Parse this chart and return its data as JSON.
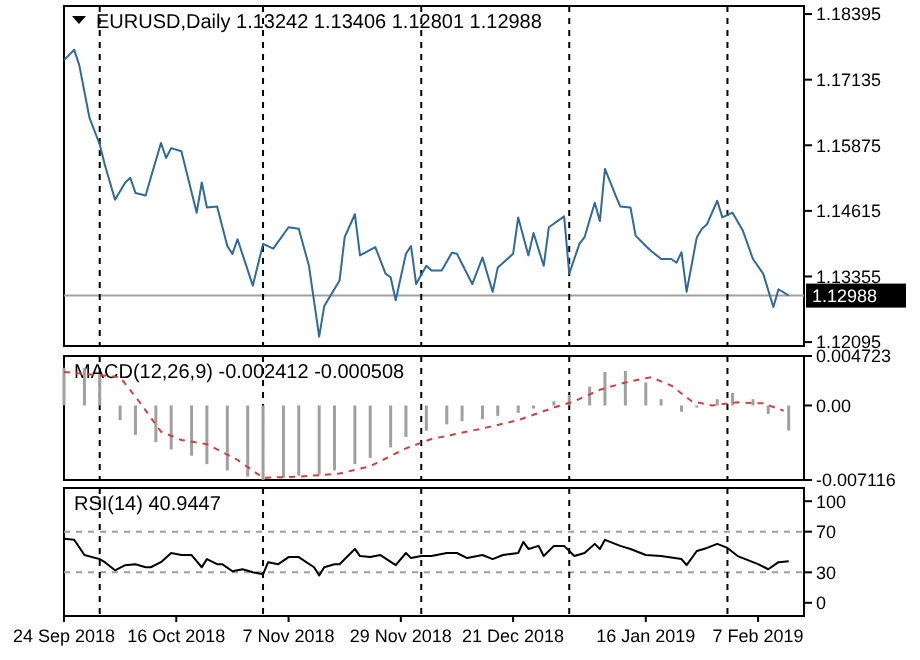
{
  "chart_data": [
    {
      "type": "line",
      "title": "EURUSD,Daily 1.13242 1.13406 1.12801 1.12988",
      "xlim": [
        "2018-09-24",
        "2019-02-16"
      ],
      "ylim": [
        1.1202,
        1.1855
      ],
      "yticks": [
        1.18395,
        1.17135,
        1.15875,
        1.14615,
        1.13355,
        1.12095
      ],
      "tick_labels": "y",
      "grid": false,
      "ref_lines": [
        {
          "axis": "y",
          "value": 1.12988,
          "label": "1.12988",
          "color": "#a0a0a0",
          "line_style": "solid"
        },
        {
          "axis": "x",
          "value": "2018-10-01",
          "color": "#000000",
          "line_style": "dashed"
        },
        {
          "axis": "x",
          "value": "2018-11-02",
          "color": "#000000",
          "line_style": "dashed"
        },
        {
          "axis": "x",
          "value": "2018-12-03",
          "color": "#000000",
          "line_style": "dashed"
        },
        {
          "axis": "x",
          "value": "2019-01-01",
          "color": "#000000",
          "line_style": "dashed"
        },
        {
          "axis": "x",
          "value": "2019-02-01",
          "color": "#000000",
          "line_style": "dashed"
        }
      ],
      "series": [
        {
          "color": "#2e6a9a",
          "x": [
            "2018-09-24",
            "2018-09-26",
            "2018-09-27",
            "2018-09-29",
            "2018-10-01",
            "2018-10-02",
            "2018-10-04",
            "2018-10-06",
            "2018-10-07",
            "2018-10-08",
            "2018-10-10",
            "2018-10-11",
            "2018-10-13",
            "2018-10-14",
            "2018-10-15",
            "2018-10-17",
            "2018-10-20",
            "2018-10-21",
            "2018-10-22",
            "2018-10-24",
            "2018-10-26",
            "2018-10-27",
            "2018-10-28",
            "2018-10-31",
            "2018-11-02",
            "2018-11-04",
            "2018-11-07",
            "2018-11-09",
            "2018-11-11",
            "2018-11-13",
            "2018-11-14",
            "2018-11-17",
            "2018-11-18",
            "2018-11-20",
            "2018-11-21",
            "2018-11-24",
            "2018-11-26",
            "2018-11-27",
            "2018-11-28",
            "2018-11-30",
            "2018-12-01",
            "2018-12-02",
            "2018-12-04",
            "2018-12-05",
            "2018-12-07",
            "2018-12-09",
            "2018-12-10",
            "2018-12-13",
            "2018-12-15",
            "2018-12-17",
            "2018-12-18",
            "2018-12-21",
            "2018-12-22",
            "2018-12-24",
            "2018-12-25",
            "2018-12-27",
            "2018-12-28",
            "2018-12-31",
            "2019-01-01",
            "2019-01-03",
            "2019-01-04",
            "2019-01-06",
            "2019-01-07",
            "2019-01-08",
            "2019-01-10",
            "2019-01-11",
            "2019-01-13",
            "2019-01-14",
            "2019-01-16",
            "2019-01-17",
            "2019-01-19",
            "2019-01-21",
            "2019-01-22",
            "2019-01-23",
            "2019-01-24",
            "2019-01-26",
            "2019-01-27",
            "2019-01-28",
            "2019-01-30",
            "2019-01-31",
            "2019-02-02",
            "2019-02-04",
            "2019-02-06",
            "2019-02-08",
            "2019-02-10",
            "2019-02-11",
            "2019-02-13"
          ],
          "values": [
            1.1751,
            1.1771,
            1.1741,
            1.164,
            1.1589,
            1.155,
            1.1483,
            1.1516,
            1.1525,
            1.1496,
            1.1491,
            1.1525,
            1.1592,
            1.1563,
            1.1582,
            1.1576,
            1.1458,
            1.1516,
            1.1468,
            1.147,
            1.1394,
            1.1379,
            1.1407,
            1.1318,
            1.1398,
            1.1389,
            1.143,
            1.1427,
            1.1356,
            1.122,
            1.1279,
            1.1328,
            1.1411,
            1.1455,
            1.1376,
            1.1392,
            1.1341,
            1.1334,
            1.129,
            1.1379,
            1.1394,
            1.1321,
            1.1356,
            1.1347,
            1.1347,
            1.1381,
            1.1379,
            1.1321,
            1.1372,
            1.1306,
            1.1353,
            1.1379,
            1.1449,
            1.1376,
            1.1419,
            1.1356,
            1.143,
            1.1451,
            1.1341,
            1.1398,
            1.1411,
            1.1477,
            1.1442,
            1.1542,
            1.1493,
            1.147,
            1.1468,
            1.1414,
            1.1394,
            1.1385,
            1.1369,
            1.1369,
            1.1362,
            1.1382,
            1.1306,
            1.1411,
            1.1427,
            1.1436,
            1.1481,
            1.1449,
            1.1458,
            1.1424,
            1.1369,
            1.1341,
            1.1277,
            1.1311,
            1.1299
          ]
        }
      ]
    },
    {
      "type": "bar",
      "title": "MACD(12,26,9) -0.002412 -0.000508",
      "xlim": [
        "2018-09-24",
        "2019-02-16"
      ],
      "ylim": [
        -0.007116,
        0.004723
      ],
      "yticks": [
        0.004723,
        {
          "value": 0,
          "label": "0.00"
        },
        -0.007116
      ],
      "tick_labels": "y",
      "grid": false,
      "ref_lines": [
        {
          "axis": "x",
          "value": "2018-10-01",
          "color": "#000000",
          "line_style": "dashed"
        },
        {
          "axis": "x",
          "value": "2018-11-02",
          "color": "#000000",
          "line_style": "dashed"
        },
        {
          "axis": "x",
          "value": "2018-12-03",
          "color": "#000000",
          "line_style": "dashed"
        },
        {
          "axis": "x",
          "value": "2019-01-01",
          "color": "#000000",
          "line_style": "dashed"
        },
        {
          "axis": "x",
          "value": "2019-02-01",
          "color": "#000000",
          "line_style": "dashed"
        }
      ],
      "series": [
        {
          "color": "#a0a0a0",
          "x": [
            "2018-09-24",
            "2018-09-28",
            "2018-10-01",
            "2018-10-05",
            "2018-10-08",
            "2018-10-12",
            "2018-10-15",
            "2018-10-19",
            "2018-10-22",
            "2018-10-26",
            "2018-10-30",
            "2018-11-02",
            "2018-11-06",
            "2018-11-09",
            "2018-11-13",
            "2018-11-16",
            "2018-11-20",
            "2018-11-23",
            "2018-11-27",
            "2018-11-30",
            "2018-12-04",
            "2018-12-08",
            "2018-12-11",
            "2018-12-15",
            "2018-12-18",
            "2018-12-22",
            "2018-12-25",
            "2018-12-29",
            "2019-01-01",
            "2019-01-05",
            "2019-01-08",
            "2019-01-12",
            "2019-01-16",
            "2019-01-19",
            "2019-01-23",
            "2019-01-26",
            "2019-01-30",
            "2019-02-02",
            "2019-02-06",
            "2019-02-09",
            "2019-02-13"
          ],
          "values": [
            0.0036,
            0.0036,
            0.003,
            -0.0014,
            -0.0028,
            -0.0035,
            -0.0042,
            -0.0048,
            -0.0056,
            -0.0062,
            -0.0068,
            -0.0071,
            -0.0069,
            -0.0067,
            -0.0066,
            -0.0062,
            -0.0056,
            -0.005,
            -0.004,
            -0.003,
            -0.0024,
            -0.0018,
            -0.0015,
            -0.0013,
            -0.001,
            -0.0007,
            -0.0003,
            0.0004,
            0.001,
            0.0018,
            0.0032,
            0.0033,
            0.0022,
            0.0006,
            -0.0006,
            -0.0002,
            0.0006,
            0.0012,
            0.0006,
            -0.0008,
            -0.0024
          ]
        },
        {
          "type": "line",
          "color": "#d04040",
          "line_style": "dashed",
          "x": [
            "2018-09-24",
            "2018-10-05",
            "2018-10-09",
            "2018-10-13",
            "2018-10-17",
            "2018-10-22",
            "2018-10-28",
            "2018-11-02",
            "2018-11-09",
            "2018-11-17",
            "2018-11-23",
            "2018-11-30",
            "2018-12-05",
            "2018-12-15",
            "2018-12-22",
            "2018-12-29",
            "2019-01-02",
            "2019-01-07",
            "2019-01-12",
            "2019-01-17",
            "2019-01-21",
            "2019-01-25",
            "2019-01-29",
            "2019-02-03",
            "2019-02-08",
            "2019-02-12"
          ],
          "values": [
            0.0032,
            0.0027,
            0.0002,
            -0.0025,
            -0.0033,
            -0.0037,
            -0.0052,
            -0.0069,
            -0.0068,
            -0.0065,
            -0.0058,
            -0.0041,
            -0.0032,
            -0.0022,
            -0.0014,
            -0.0002,
            0.0004,
            0.0015,
            0.0022,
            0.0027,
            0.0019,
            0.0004,
            0.0,
            0.0003,
            0.0002,
            -0.0005
          ]
        }
      ]
    },
    {
      "type": "line",
      "title": "RSI(14) 40.9447",
      "xlim": [
        "2018-09-24",
        "2019-02-16"
      ],
      "xticks": [
        {
          "value": "2018-09-24",
          "label": "24 Sep 2018"
        },
        {
          "value": "2018-10-16",
          "label": "16 Oct 2018"
        },
        {
          "value": "2018-11-07",
          "label": "7 Nov 2018"
        },
        {
          "value": "2018-11-29",
          "label": "29 Nov 2018"
        },
        {
          "value": "2018-12-21",
          "label": "21 Dec 2018"
        },
        {
          "value": "2019-01-16",
          "label": "16 Jan 2019"
        },
        {
          "value": "2019-02-07",
          "label": "7 Feb 2019"
        }
      ],
      "ylim": [
        -13,
        113
      ],
      "yticks": [
        100,
        70,
        30,
        0
      ],
      "grid": false,
      "ref_lines": [
        {
          "axis": "y",
          "value": 70,
          "color": "#a0a0a0",
          "line_style": "dashed"
        },
        {
          "axis": "y",
          "value": 30,
          "color": "#a0a0a0",
          "line_style": "dashed"
        },
        {
          "axis": "x",
          "value": "2018-10-01",
          "color": "#000000",
          "line_style": "dashed"
        },
        {
          "axis": "x",
          "value": "2018-11-02",
          "color": "#000000",
          "line_style": "dashed"
        },
        {
          "axis": "x",
          "value": "2018-12-03",
          "color": "#000000",
          "line_style": "dashed"
        },
        {
          "axis": "x",
          "value": "2019-01-01",
          "color": "#000000",
          "line_style": "dashed"
        },
        {
          "axis": "x",
          "value": "2019-02-01",
          "color": "#000000",
          "line_style": "dashed"
        }
      ],
      "series": [
        {
          "color": "#000000",
          "x": [
            "2018-09-24",
            "2018-09-26",
            "2018-09-28",
            "2018-10-01",
            "2018-10-02",
            "2018-10-04",
            "2018-10-06",
            "2018-10-08",
            "2018-10-10",
            "2018-10-11",
            "2018-10-13",
            "2018-10-15",
            "2018-10-17",
            "2018-10-19",
            "2018-10-21",
            "2018-10-22",
            "2018-10-24",
            "2018-10-25",
            "2018-10-27",
            "2018-10-29",
            "2018-10-31",
            "2018-11-02",
            "2018-11-03",
            "2018-11-05",
            "2018-11-07",
            "2018-11-09",
            "2018-11-12",
            "2018-11-13",
            "2018-11-14",
            "2018-11-16",
            "2018-11-17",
            "2018-11-20",
            "2018-11-21",
            "2018-11-23",
            "2018-11-25",
            "2018-11-28",
            "2018-11-30",
            "2018-12-01",
            "2018-12-03",
            "2018-12-05",
            "2018-12-08",
            "2018-12-10",
            "2018-12-12",
            "2018-12-15",
            "2018-12-17",
            "2018-12-19",
            "2018-12-22",
            "2018-12-23",
            "2018-12-24",
            "2018-12-26",
            "2018-12-27",
            "2018-12-29",
            "2018-12-31",
            "2019-01-02",
            "2019-01-04",
            "2019-01-06",
            "2019-01-07",
            "2019-01-08",
            "2019-01-11",
            "2019-01-13",
            "2019-01-16",
            "2019-01-19",
            "2019-01-23",
            "2019-01-24",
            "2019-01-26",
            "2019-01-28",
            "2019-01-30",
            "2019-02-01",
            "2019-02-03",
            "2019-02-07",
            "2019-02-09",
            "2019-02-11",
            "2019-02-13"
          ],
          "values": [
            63,
            62,
            47,
            43,
            40,
            32,
            37,
            38,
            35,
            35,
            40,
            49,
            47,
            47,
            35,
            43,
            38,
            38,
            31,
            33,
            30,
            28,
            40,
            38,
            45,
            45,
            35,
            27,
            35,
            38,
            38,
            53,
            46,
            45,
            47,
            37,
            49,
            44,
            46,
            46,
            49,
            49,
            44,
            47,
            43,
            47,
            49,
            60,
            53,
            56,
            46,
            56,
            56,
            46,
            49,
            58,
            53,
            62,
            56,
            53,
            47,
            46,
            43,
            37,
            51,
            54,
            58,
            54,
            46,
            38,
            33,
            40,
            41
          ]
        }
      ]
    }
  ]
}
